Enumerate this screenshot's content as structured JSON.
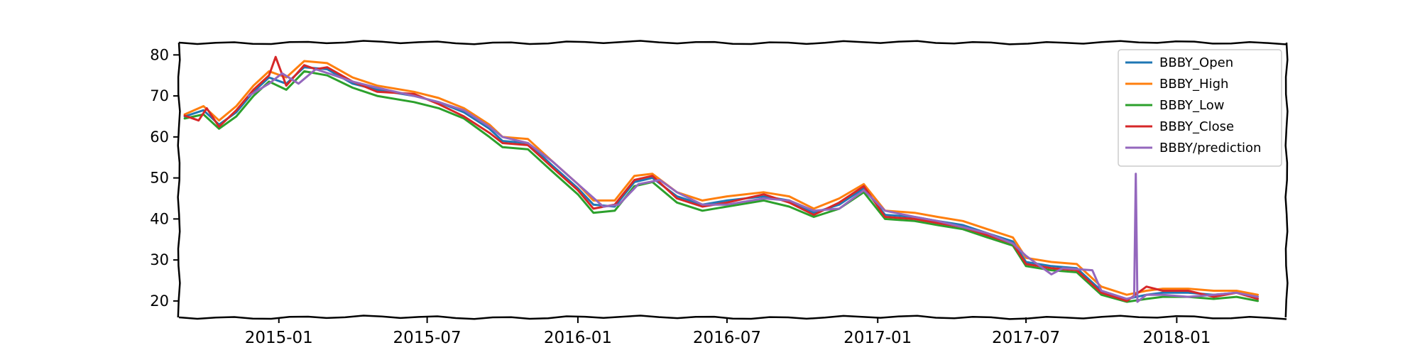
{
  "chart_data": {
    "type": "line",
    "title": "",
    "xlabel": "",
    "ylabel": "",
    "xlim": [
      "2014-09-01",
      "2018-05-15"
    ],
    "ylim": [
      16,
      83
    ],
    "x_ticks": [
      "2015-01",
      "2015-07",
      "2016-01",
      "2016-07",
      "2017-01",
      "2017-07",
      "2018-01"
    ],
    "y_ticks": [
      20,
      30,
      40,
      50,
      60,
      70,
      80
    ],
    "grid": false,
    "legend_position": "top-right",
    "series": [
      {
        "name": "BBBY_Open",
        "color": "#1f77b4",
        "points": [
          [
            "2014-09-08",
            65.0
          ],
          [
            "2014-10-01",
            66.5
          ],
          [
            "2014-10-20",
            63.0
          ],
          [
            "2014-11-10",
            66.0
          ],
          [
            "2014-12-01",
            71.0
          ],
          [
            "2014-12-20",
            74.5
          ],
          [
            "2015-01-10",
            73.0
          ],
          [
            "2015-02-01",
            77.0
          ],
          [
            "2015-03-01",
            76.5
          ],
          [
            "2015-04-01",
            73.0
          ],
          [
            "2015-05-01",
            71.5
          ],
          [
            "2015-06-15",
            70.0
          ],
          [
            "2015-07-15",
            68.5
          ],
          [
            "2015-08-15",
            66.0
          ],
          [
            "2015-09-15",
            62.0
          ],
          [
            "2015-10-01",
            59.0
          ],
          [
            "2015-11-01",
            58.5
          ],
          [
            "2015-12-01",
            53.0
          ],
          [
            "2016-01-01",
            47.5
          ],
          [
            "2016-01-20",
            43.5
          ],
          [
            "2016-02-15",
            43.0
          ],
          [
            "2016-03-10",
            49.0
          ],
          [
            "2016-04-01",
            50.0
          ],
          [
            "2016-05-01",
            45.5
          ],
          [
            "2016-06-01",
            43.5
          ],
          [
            "2016-07-01",
            44.5
          ],
          [
            "2016-08-15",
            45.5
          ],
          [
            "2016-09-15",
            44.5
          ],
          [
            "2016-10-15",
            41.5
          ],
          [
            "2016-11-15",
            43.5
          ],
          [
            "2016-12-15",
            47.5
          ],
          [
            "2017-01-10",
            41.0
          ],
          [
            "2017-02-15",
            40.5
          ],
          [
            "2017-03-15",
            39.5
          ],
          [
            "2017-04-15",
            38.5
          ],
          [
            "2017-05-15",
            36.5
          ],
          [
            "2017-06-15",
            34.5
          ],
          [
            "2017-07-01",
            29.5
          ],
          [
            "2017-08-01",
            28.5
          ],
          [
            "2017-09-01",
            28.0
          ],
          [
            "2017-10-01",
            22.5
          ],
          [
            "2017-11-01",
            20.5
          ],
          [
            "2017-11-25",
            21.5
          ],
          [
            "2017-12-15",
            22.0
          ],
          [
            "2018-01-15",
            22.0
          ],
          [
            "2018-02-15",
            21.5
          ],
          [
            "2018-03-15",
            22.0
          ],
          [
            "2018-04-10",
            21.0
          ]
        ]
      },
      {
        "name": "BBBY_High",
        "color": "#ff7f0e",
        "points": [
          [
            "2014-09-08",
            65.5
          ],
          [
            "2014-10-01",
            67.5
          ],
          [
            "2014-10-20",
            64.0
          ],
          [
            "2014-11-10",
            67.5
          ],
          [
            "2014-12-01",
            72.5
          ],
          [
            "2014-12-20",
            76.0
          ],
          [
            "2015-01-10",
            74.5
          ],
          [
            "2015-02-01",
            78.5
          ],
          [
            "2015-03-01",
            78.0
          ],
          [
            "2015-04-01",
            74.5
          ],
          [
            "2015-05-01",
            72.5
          ],
          [
            "2015-06-15",
            71.0
          ],
          [
            "2015-07-15",
            69.5
          ],
          [
            "2015-08-15",
            67.0
          ],
          [
            "2015-09-15",
            63.0
          ],
          [
            "2015-10-01",
            60.0
          ],
          [
            "2015-11-01",
            59.5
          ],
          [
            "2015-12-01",
            54.0
          ],
          [
            "2016-01-01",
            48.5
          ],
          [
            "2016-01-20",
            44.5
          ],
          [
            "2016-02-15",
            44.5
          ],
          [
            "2016-03-10",
            50.5
          ],
          [
            "2016-04-01",
            51.0
          ],
          [
            "2016-05-01",
            46.5
          ],
          [
            "2016-06-01",
            44.5
          ],
          [
            "2016-07-01",
            45.5
          ],
          [
            "2016-08-15",
            46.5
          ],
          [
            "2016-09-15",
            45.5
          ],
          [
            "2016-10-15",
            42.5
          ],
          [
            "2016-11-15",
            45.0
          ],
          [
            "2016-12-15",
            48.5
          ],
          [
            "2017-01-10",
            42.0
          ],
          [
            "2017-02-15",
            41.5
          ],
          [
            "2017-03-15",
            40.5
          ],
          [
            "2017-04-15",
            39.5
          ],
          [
            "2017-05-15",
            37.5
          ],
          [
            "2017-06-15",
            35.5
          ],
          [
            "2017-07-01",
            30.5
          ],
          [
            "2017-08-01",
            29.5
          ],
          [
            "2017-09-01",
            29.0
          ],
          [
            "2017-10-01",
            23.5
          ],
          [
            "2017-11-01",
            21.5
          ],
          [
            "2017-11-25",
            22.5
          ],
          [
            "2017-12-15",
            23.0
          ],
          [
            "2018-01-15",
            23.0
          ],
          [
            "2018-02-15",
            22.5
          ],
          [
            "2018-03-15",
            22.5
          ],
          [
            "2018-04-10",
            21.5
          ]
        ]
      },
      {
        "name": "BBBY_Low",
        "color": "#2ca02c",
        "points": [
          [
            "2014-09-08",
            64.5
          ],
          [
            "2014-10-01",
            65.5
          ],
          [
            "2014-10-20",
            62.0
          ],
          [
            "2014-11-10",
            65.0
          ],
          [
            "2014-12-01",
            70.0
          ],
          [
            "2014-12-20",
            73.5
          ],
          [
            "2015-01-10",
            71.5
          ],
          [
            "2015-02-01",
            76.0
          ],
          [
            "2015-03-01",
            75.0
          ],
          [
            "2015-04-01",
            72.0
          ],
          [
            "2015-05-01",
            70.0
          ],
          [
            "2015-06-15",
            68.5
          ],
          [
            "2015-07-15",
            67.0
          ],
          [
            "2015-08-15",
            64.5
          ],
          [
            "2015-09-15",
            60.0
          ],
          [
            "2015-10-01",
            57.5
          ],
          [
            "2015-11-01",
            57.0
          ],
          [
            "2015-12-01",
            51.5
          ],
          [
            "2016-01-01",
            46.0
          ],
          [
            "2016-01-20",
            41.5
          ],
          [
            "2016-02-15",
            42.0
          ],
          [
            "2016-03-10",
            48.0
          ],
          [
            "2016-04-01",
            49.0
          ],
          [
            "2016-05-01",
            44.0
          ],
          [
            "2016-06-01",
            42.0
          ],
          [
            "2016-07-01",
            43.0
          ],
          [
            "2016-08-15",
            44.5
          ],
          [
            "2016-09-15",
            43.0
          ],
          [
            "2016-10-15",
            40.5
          ],
          [
            "2016-11-15",
            42.5
          ],
          [
            "2016-12-15",
            46.5
          ],
          [
            "2017-01-10",
            40.0
          ],
          [
            "2017-02-15",
            39.5
          ],
          [
            "2017-03-15",
            38.5
          ],
          [
            "2017-04-15",
            37.5
          ],
          [
            "2017-05-15",
            35.5
          ],
          [
            "2017-06-15",
            33.5
          ],
          [
            "2017-07-01",
            28.5
          ],
          [
            "2017-08-01",
            27.5
          ],
          [
            "2017-09-01",
            27.0
          ],
          [
            "2017-10-01",
            21.5
          ],
          [
            "2017-11-01",
            19.8
          ],
          [
            "2017-11-25",
            20.5
          ],
          [
            "2017-12-15",
            21.0
          ],
          [
            "2018-01-15",
            21.0
          ],
          [
            "2018-02-15",
            20.5
          ],
          [
            "2018-03-15",
            21.0
          ],
          [
            "2018-04-10",
            20.0
          ]
        ]
      },
      {
        "name": "BBBY_Close",
        "color": "#d62728",
        "points": [
          [
            "2014-09-08",
            65.2
          ],
          [
            "2014-09-25",
            64.0
          ],
          [
            "2014-10-05",
            67.0
          ],
          [
            "2014-10-20",
            62.5
          ],
          [
            "2014-11-10",
            66.5
          ],
          [
            "2014-12-01",
            71.5
          ],
          [
            "2014-12-20",
            75.0
          ],
          [
            "2014-12-28",
            79.5
          ],
          [
            "2015-01-10",
            72.5
          ],
          [
            "2015-02-01",
            77.5
          ],
          [
            "2015-02-15",
            76.5
          ],
          [
            "2015-03-01",
            77.0
          ],
          [
            "2015-04-01",
            73.5
          ],
          [
            "2015-05-01",
            71.0
          ],
          [
            "2015-06-15",
            70.5
          ],
          [
            "2015-07-15",
            68.0
          ],
          [
            "2015-08-15",
            65.0
          ],
          [
            "2015-09-15",
            61.0
          ],
          [
            "2015-10-01",
            58.5
          ],
          [
            "2015-11-01",
            58.0
          ],
          [
            "2015-12-01",
            52.5
          ],
          [
            "2016-01-01",
            47.0
          ],
          [
            "2016-01-20",
            42.5
          ],
          [
            "2016-02-15",
            43.5
          ],
          [
            "2016-03-10",
            49.5
          ],
          [
            "2016-04-01",
            50.5
          ],
          [
            "2016-05-01",
            45.0
          ],
          [
            "2016-06-01",
            43.0
          ],
          [
            "2016-07-01",
            44.0
          ],
          [
            "2016-08-15",
            46.0
          ],
          [
            "2016-09-15",
            44.0
          ],
          [
            "2016-10-15",
            41.0
          ],
          [
            "2016-11-15",
            44.0
          ],
          [
            "2016-12-15",
            48.0
          ],
          [
            "2017-01-10",
            40.5
          ],
          [
            "2017-02-15",
            40.0
          ],
          [
            "2017-03-15",
            39.0
          ],
          [
            "2017-04-15",
            38.0
          ],
          [
            "2017-05-15",
            36.0
          ],
          [
            "2017-06-15",
            34.0
          ],
          [
            "2017-07-01",
            29.0
          ],
          [
            "2017-08-01",
            28.0
          ],
          [
            "2017-09-01",
            27.5
          ],
          [
            "2017-10-01",
            22.0
          ],
          [
            "2017-11-01",
            20.0
          ],
          [
            "2017-11-25",
            23.5
          ],
          [
            "2017-12-15",
            22.5
          ],
          [
            "2018-01-15",
            22.5
          ],
          [
            "2018-02-15",
            21.0
          ],
          [
            "2018-03-15",
            22.0
          ],
          [
            "2018-04-10",
            20.5
          ]
        ]
      },
      {
        "name": "BBBY/prediction",
        "color": "#9467bd",
        "points": [
          [
            "2014-11-25",
            70.0
          ],
          [
            "2014-12-20",
            73.0
          ],
          [
            "2015-01-05",
            75.5
          ],
          [
            "2015-01-25",
            73.0
          ],
          [
            "2015-02-15",
            76.5
          ],
          [
            "2015-03-10",
            75.0
          ],
          [
            "2015-04-01",
            73.5
          ],
          [
            "2015-05-01",
            72.0
          ],
          [
            "2015-06-15",
            70.0
          ],
          [
            "2015-07-15",
            68.5
          ],
          [
            "2015-08-15",
            66.5
          ],
          [
            "2015-09-15",
            62.5
          ],
          [
            "2015-10-01",
            60.0
          ],
          [
            "2015-11-01",
            58.5
          ],
          [
            "2015-12-01",
            54.0
          ],
          [
            "2016-01-01",
            48.5
          ],
          [
            "2016-02-01",
            43.0
          ],
          [
            "2016-02-20",
            43.5
          ],
          [
            "2016-03-15",
            48.5
          ],
          [
            "2016-04-10",
            49.5
          ],
          [
            "2016-05-01",
            46.5
          ],
          [
            "2016-06-01",
            43.5
          ],
          [
            "2016-07-01",
            43.5
          ],
          [
            "2016-08-15",
            45.0
          ],
          [
            "2016-09-15",
            44.5
          ],
          [
            "2016-10-15",
            42.0
          ],
          [
            "2016-11-15",
            42.5
          ],
          [
            "2016-12-15",
            47.0
          ],
          [
            "2017-01-10",
            42.0
          ],
          [
            "2017-02-15",
            40.5
          ],
          [
            "2017-03-15",
            39.5
          ],
          [
            "2017-04-15",
            38.0
          ],
          [
            "2017-05-15",
            36.5
          ],
          [
            "2017-06-15",
            34.0
          ],
          [
            "2017-07-01",
            31.0
          ],
          [
            "2017-08-01",
            26.5
          ],
          [
            "2017-08-15",
            28.0
          ],
          [
            "2017-09-20",
            27.5
          ],
          [
            "2017-10-01",
            22.5
          ],
          [
            "2017-11-01",
            20.5
          ],
          [
            "2017-11-10",
            21.0
          ],
          [
            "2017-11-12",
            51.0
          ],
          [
            "2017-11-14",
            19.8
          ],
          [
            "2017-11-25",
            21.5
          ],
          [
            "2017-12-15",
            21.5
          ],
          [
            "2018-01-15",
            21.0
          ],
          [
            "2018-02-15",
            21.5
          ],
          [
            "2018-03-15",
            22.0
          ],
          [
            "2018-04-10",
            21.0
          ]
        ]
      }
    ]
  }
}
